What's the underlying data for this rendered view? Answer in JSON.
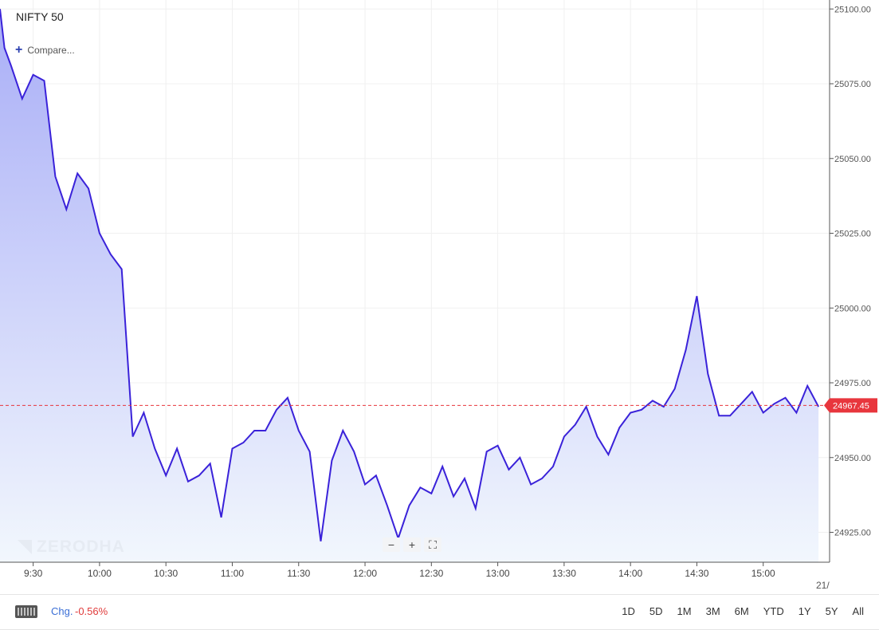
{
  "header": {
    "title": "NIFTY 50",
    "compare_label": "Compare..."
  },
  "watermark": "ZERODHA",
  "colors": {
    "line": "#3a22d9",
    "accent_red": "#e8363d",
    "area_top": "#a9aef7",
    "area_bottom": "#f2f7fd"
  },
  "price_tag": "24967.45",
  "x_edge_label": "21/",
  "zoom_controls": [
    {
      "name": "zoom-out-button",
      "label": "−"
    },
    {
      "name": "zoom-in-button",
      "label": "+"
    },
    {
      "name": "fullscreen-button",
      "label": "⛶"
    }
  ],
  "bottom": {
    "chg_label": "Chg.",
    "chg_value": "-0.56%",
    "ranges": [
      "1D",
      "5D",
      "1M",
      "3M",
      "6M",
      "YTD",
      "1Y",
      "5Y",
      "All"
    ]
  },
  "chart_data": {
    "type": "area",
    "title": "NIFTY 50",
    "x_minutes_start": 555,
    "x_minutes_end": 930,
    "x_tick_labels": [
      "9:30",
      "10:00",
      "10:30",
      "11:00",
      "11:30",
      "12:00",
      "12:30",
      "13:00",
      "13:30",
      "14:00",
      "14:30",
      "15:00"
    ],
    "y_ticks": [
      "24925.00",
      "24950.00",
      "24975.00",
      "25000.00",
      "25025.00",
      "25050.00",
      "25075.00",
      "25100.00"
    ],
    "ylim": [
      24915,
      25103
    ],
    "last_price": 24967.45,
    "series": [
      {
        "x": [
          "9:15",
          "9:17",
          "9:20",
          "9:25",
          "9:30",
          "9:35",
          "9:40",
          "9:45",
          "9:50",
          "9:55",
          "10:00",
          "10:05",
          "10:10",
          "10:15",
          "10:20",
          "10:25",
          "10:30",
          "10:35",
          "10:40",
          "10:45",
          "10:50",
          "10:55",
          "11:00",
          "11:05",
          "11:10",
          "11:15",
          "11:20",
          "11:25",
          "11:30",
          "11:35",
          "11:40",
          "11:45",
          "11:50",
          "11:55",
          "12:00",
          "12:05",
          "12:10",
          "12:15",
          "12:20",
          "12:25",
          "12:30",
          "12:35",
          "12:40",
          "12:45",
          "12:50",
          "12:55",
          "13:00",
          "13:05",
          "13:10",
          "13:15",
          "13:20",
          "13:25",
          "13:30",
          "13:35",
          "13:40",
          "13:45",
          "13:50",
          "13:55",
          "14:00",
          "14:05",
          "14:10",
          "14:15",
          "14:20",
          "14:25",
          "14:30",
          "14:35",
          "14:40",
          "14:45",
          "14:50",
          "14:55",
          "15:00",
          "15:05",
          "15:10",
          "15:15",
          "15:20",
          "15:25"
        ],
        "values": [
          25100,
          25087,
          25081,
          25070,
          25078,
          25076,
          25044,
          25033,
          25045,
          25040,
          25025,
          25018,
          25013,
          24957,
          24965,
          24953,
          24944,
          24953,
          24942,
          24944,
          24948,
          24930,
          24953,
          24955,
          24959,
          24959,
          24966,
          24970,
          24959,
          24952,
          24922,
          24949,
          24959,
          24952,
          24941,
          24944,
          24934,
          24923,
          24934,
          24940,
          24938,
          24947,
          24937,
          24943,
          24933,
          24952,
          24954,
          24946,
          24950,
          24941,
          24943,
          24947,
          24957,
          24961,
          24967,
          24957,
          24951,
          24960,
          24965,
          24966,
          24969,
          24967,
          24973,
          24986,
          25004,
          24978,
          24964,
          24964,
          24968,
          24972,
          24965,
          24968,
          24970,
          24965,
          24974,
          24967
        ]
      }
    ]
  }
}
